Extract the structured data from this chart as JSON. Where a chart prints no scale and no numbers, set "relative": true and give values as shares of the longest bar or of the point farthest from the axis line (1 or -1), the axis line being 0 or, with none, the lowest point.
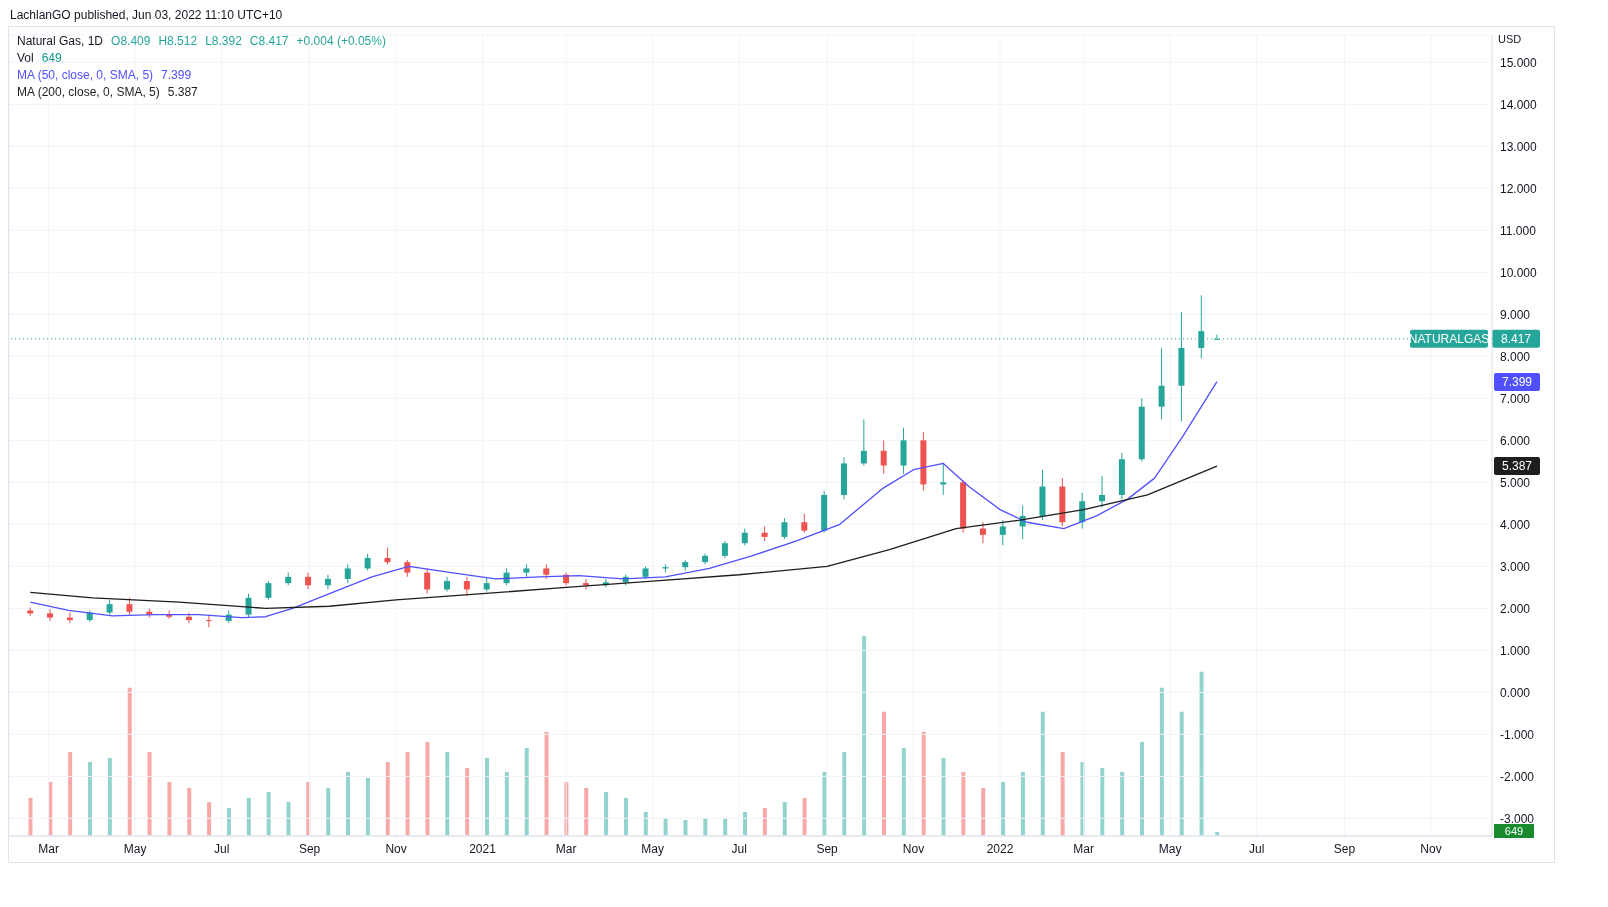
{
  "chart_data": [
    {
      "type": "candlestick",
      "title": "Natural Gas, 1D",
      "ylabel": "USD",
      "annotations": [
        "LachlanGO published, Jun 03, 2022 11:10 UTC+10",
        "O8.409",
        "H8.512",
        "L8.392",
        "C8.417",
        "+0.004 (+0.05%)",
        "8.417",
        "7.399",
        "5.387"
      ],
      "x": [
        "2020-02-17",
        "2020-03-02",
        "2020-03-16",
        "2020-03-30",
        "2020-04-13",
        "2020-04-27",
        "2020-05-11",
        "2020-05-25",
        "2020-06-08",
        "2020-06-22",
        "2020-07-06",
        "2020-07-20",
        "2020-08-03",
        "2020-08-17",
        "2020-08-31",
        "2020-09-14",
        "2020-09-28",
        "2020-10-12",
        "2020-10-26",
        "2020-11-09",
        "2020-11-23",
        "2020-12-07",
        "2020-12-21",
        "2021-01-04",
        "2021-01-18",
        "2021-02-01",
        "2021-02-15",
        "2021-03-01",
        "2021-03-15",
        "2021-03-29",
        "2021-04-12",
        "2021-04-26",
        "2021-05-10",
        "2021-05-24",
        "2021-06-07",
        "2021-06-21",
        "2021-07-05",
        "2021-07-19",
        "2021-08-02",
        "2021-08-16",
        "2021-08-30",
        "2021-09-13",
        "2021-09-27",
        "2021-10-11",
        "2021-10-25",
        "2021-11-08",
        "2021-11-22",
        "2021-12-06",
        "2021-12-20",
        "2022-01-03",
        "2022-01-17",
        "2022-01-31",
        "2022-02-14",
        "2022-02-28",
        "2022-03-14",
        "2022-03-28",
        "2022-04-11",
        "2022-04-25",
        "2022-05-09",
        "2022-05-23",
        "2022-06-03"
      ],
      "ohlc": [
        [
          1.95,
          2.02,
          1.82,
          1.88
        ],
        [
          1.88,
          1.98,
          1.7,
          1.78
        ],
        [
          1.78,
          1.9,
          1.65,
          1.72
        ],
        [
          1.72,
          1.95,
          1.68,
          1.9
        ],
        [
          1.9,
          2.2,
          1.85,
          2.1
        ],
        [
          2.1,
          2.25,
          1.85,
          1.92
        ],
        [
          1.92,
          2.0,
          1.78,
          1.85
        ],
        [
          1.85,
          1.95,
          1.75,
          1.8
        ],
        [
          1.8,
          1.9,
          1.65,
          1.72
        ],
        [
          1.72,
          1.85,
          1.55,
          1.7
        ],
        [
          1.7,
          1.95,
          1.65,
          1.85
        ],
        [
          1.85,
          2.35,
          1.78,
          2.25
        ],
        [
          2.25,
          2.65,
          2.2,
          2.6
        ],
        [
          2.6,
          2.85,
          2.55,
          2.75
        ],
        [
          2.75,
          2.85,
          2.45,
          2.55
        ],
        [
          2.55,
          2.8,
          2.45,
          2.7
        ],
        [
          2.7,
          3.05,
          2.6,
          2.95
        ],
        [
          2.95,
          3.3,
          2.9,
          3.2
        ],
        [
          3.2,
          3.45,
          3.05,
          3.1
        ],
        [
          3.1,
          3.15,
          2.75,
          2.85
        ],
        [
          2.85,
          2.95,
          2.35,
          2.45
        ],
        [
          2.45,
          2.75,
          2.4,
          2.65
        ],
        [
          2.65,
          2.75,
          2.3,
          2.45
        ],
        [
          2.45,
          2.75,
          2.4,
          2.6
        ],
        [
          2.6,
          2.95,
          2.55,
          2.85
        ],
        [
          2.85,
          3.05,
          2.75,
          2.95
        ],
        [
          2.95,
          3.05,
          2.7,
          2.8
        ],
        [
          2.8,
          2.85,
          2.55,
          2.6
        ],
        [
          2.6,
          2.7,
          2.45,
          2.55
        ],
        [
          2.55,
          2.7,
          2.5,
          2.62
        ],
        [
          2.62,
          2.8,
          2.55,
          2.75
        ],
        [
          2.75,
          3.0,
          2.7,
          2.95
        ],
        [
          2.95,
          3.05,
          2.85,
          2.98
        ],
        [
          2.98,
          3.15,
          2.9,
          3.1
        ],
        [
          3.1,
          3.3,
          3.05,
          3.25
        ],
        [
          3.25,
          3.6,
          3.2,
          3.55
        ],
        [
          3.55,
          3.9,
          3.5,
          3.8
        ],
        [
          3.8,
          3.95,
          3.6,
          3.7
        ],
        [
          3.7,
          4.15,
          3.65,
          4.05
        ],
        [
          4.05,
          4.25,
          3.8,
          3.85
        ],
        [
          3.85,
          4.8,
          3.8,
          4.7
        ],
        [
          4.7,
          5.6,
          4.6,
          5.45
        ],
        [
          5.45,
          6.5,
          5.4,
          5.75
        ],
        [
          5.75,
          6.0,
          5.2,
          5.4
        ],
        [
          5.4,
          6.3,
          5.2,
          6.0
        ],
        [
          6.0,
          6.2,
          4.8,
          4.95
        ],
        [
          4.95,
          5.45,
          4.7,
          5.0
        ],
        [
          5.0,
          5.05,
          3.8,
          3.9
        ],
        [
          3.9,
          4.05,
          3.55,
          3.75
        ],
        [
          3.75,
          4.1,
          3.5,
          3.95
        ],
        [
          3.95,
          4.45,
          3.65,
          4.2
        ],
        [
          4.2,
          5.3,
          4.1,
          4.9
        ],
        [
          4.9,
          5.1,
          3.95,
          4.05
        ],
        [
          4.05,
          4.75,
          3.9,
          4.55
        ],
        [
          4.55,
          5.15,
          4.4,
          4.7
        ],
        [
          4.7,
          5.7,
          4.6,
          5.55
        ],
        [
          5.55,
          7.0,
          5.5,
          6.8
        ],
        [
          6.8,
          8.2,
          6.5,
          7.3
        ],
        [
          7.3,
          9.05,
          6.45,
          8.2
        ],
        [
          8.2,
          9.45,
          7.95,
          8.6
        ],
        [
          8.409,
          8.512,
          8.392,
          8.417
        ]
      ],
      "colors": [
        "#ef5350",
        "#ef5350",
        "#ef5350",
        "#26a69a",
        "#26a69a",
        "#ef5350",
        "#ef5350",
        "#ef5350",
        "#ef5350",
        "#ef5350",
        "#26a69a",
        "#26a69a",
        "#26a69a",
        "#26a69a",
        "#ef5350",
        "#26a69a",
        "#26a69a",
        "#26a69a",
        "#ef5350",
        "#ef5350",
        "#ef5350",
        "#26a69a",
        "#ef5350",
        "#26a69a",
        "#26a69a",
        "#26a69a",
        "#ef5350",
        "#ef5350",
        "#ef5350",
        "#26a69a",
        "#26a69a",
        "#26a69a",
        "#26a69a",
        "#26a69a",
        "#26a69a",
        "#26a69a",
        "#26a69a",
        "#ef5350",
        "#26a69a",
        "#ef5350",
        "#26a69a",
        "#26a69a",
        "#26a69a",
        "#ef5350",
        "#26a69a",
        "#ef5350",
        "#26a69a",
        "#ef5350",
        "#ef5350",
        "#26a69a",
        "#26a69a",
        "#26a69a",
        "#ef5350",
        "#26a69a",
        "#26a69a",
        "#26a69a",
        "#26a69a",
        "#26a69a",
        "#26a69a",
        "#26a69a",
        "#26a69a"
      ],
      "series": [
        {
          "type": "line",
          "name": "MA (50, close, 0, SMA, 5)",
          "color": "#5050ff",
          "x": [
            "2020-02-17",
            "2020-03-15",
            "2020-04-15",
            "2020-05-15",
            "2020-06-15",
            "2020-07-15",
            "2020-08-01",
            "2020-08-20",
            "2020-09-15",
            "2020-10-15",
            "2020-11-10",
            "2020-12-10",
            "2021-01-10",
            "2021-02-10",
            "2021-03-10",
            "2021-04-10",
            "2021-05-10",
            "2021-06-10",
            "2021-07-10",
            "2021-08-10",
            "2021-09-10",
            "2021-10-10",
            "2021-11-01",
            "2021-11-22",
            "2021-12-10",
            "2022-01-01",
            "2022-01-20",
            "2022-02-15",
            "2022-03-10",
            "2022-04-01",
            "2022-04-20",
            "2022-05-10",
            "2022-06-03"
          ],
          "values": [
            2.15,
            1.95,
            1.82,
            1.85,
            1.85,
            1.78,
            1.8,
            2.0,
            2.35,
            2.75,
            3.0,
            2.85,
            2.7,
            2.75,
            2.78,
            2.7,
            2.75,
            2.95,
            3.25,
            3.6,
            4.0,
            4.85,
            5.3,
            5.45,
            4.9,
            4.35,
            4.05,
            3.9,
            4.2,
            4.6,
            5.1,
            6.1,
            7.399
          ]
        },
        {
          "type": "line",
          "name": "MA (200, close, 0, SMA, 5)",
          "color": "#1e1e1e",
          "x": [
            "2020-02-17",
            "2020-04-01",
            "2020-06-01",
            "2020-08-01",
            "2020-09-15",
            "2020-11-01",
            "2021-01-01",
            "2021-03-01",
            "2021-05-01",
            "2021-07-01",
            "2021-09-01",
            "2021-10-15",
            "2021-12-01",
            "2022-01-15",
            "2022-03-01",
            "2022-04-15",
            "2022-06-03"
          ],
          "values": [
            2.38,
            2.25,
            2.15,
            2.0,
            2.05,
            2.2,
            2.35,
            2.5,
            2.65,
            2.8,
            3.0,
            3.4,
            3.9,
            4.1,
            4.35,
            4.7,
            5.387
          ]
        }
      ],
      "ref_lines": [
        {
          "axis": "y",
          "value": 8.417,
          "label": "NATURALGAS",
          "color": "#26a69a",
          "line_style": "dotted"
        }
      ],
      "xlim": [
        "2020-02-02",
        "2022-12-14"
      ],
      "xticks": [
        {
          "value": "2020-03-01",
          "label": "Mar"
        },
        {
          "value": "2020-05-01",
          "label": "May"
        },
        {
          "value": "2020-07-01",
          "label": "Jul"
        },
        {
          "value": "2020-09-01",
          "label": "Sep"
        },
        {
          "value": "2020-11-01",
          "label": "Nov"
        },
        {
          "value": "2021-01-01",
          "label": "2021"
        },
        {
          "value": "2021-03-01",
          "label": "Mar"
        },
        {
          "value": "2021-05-01",
          "label": "May"
        },
        {
          "value": "2021-07-01",
          "label": "Jul"
        },
        {
          "value": "2021-09-01",
          "label": "Sep"
        },
        {
          "value": "2021-11-01",
          "label": "Nov"
        },
        {
          "value": "2022-01-01",
          "label": "2022"
        },
        {
          "value": "2022-03-01",
          "label": "Mar"
        },
        {
          "value": "2022-05-01",
          "label": "May"
        },
        {
          "value": "2022-07-01",
          "label": "Jul"
        },
        {
          "value": "2022-09-01",
          "label": "Sep"
        },
        {
          "value": "2022-11-01",
          "label": "Nov"
        }
      ],
      "ylim": [
        -3.42,
        15.65
      ],
      "yticks": [
        {
          "value": -3,
          "label": "-3.000"
        },
        {
          "value": -2,
          "label": "-2.000"
        },
        {
          "value": -1,
          "label": "-1.000"
        },
        {
          "value": 0,
          "label": "0.000"
        },
        {
          "value": 1,
          "label": "1.000"
        },
        {
          "value": 2,
          "label": "2.000"
        },
        {
          "value": 3,
          "label": "3.000"
        },
        {
          "value": 4,
          "label": "4.000"
        },
        {
          "value": 5,
          "label": "5.000"
        },
        {
          "value": 6,
          "label": "6.000"
        },
        {
          "value": 7,
          "label": "7.000"
        },
        {
          "value": 8,
          "label": "8.000"
        },
        {
          "value": 9,
          "label": "9.000"
        },
        {
          "value": 10,
          "label": "10.000"
        },
        {
          "value": 11,
          "label": "11.000"
        },
        {
          "value": 12,
          "label": "12.000"
        },
        {
          "value": 13,
          "label": "13.000"
        },
        {
          "value": 14,
          "label": "14.000"
        },
        {
          "value": 15,
          "label": "15.000"
        }
      ],
      "grid": true,
      "legend": "top left"
    },
    {
      "type": "bar",
      "relative": true,
      "title": "Vol",
      "annotations": [
        "649"
      ],
      "tick_labels": false,
      "x": [
        "2020-02-17",
        "2020-03-02",
        "2020-03-16",
        "2020-03-30",
        "2020-04-13",
        "2020-04-27",
        "2020-05-11",
        "2020-05-25",
        "2020-06-08",
        "2020-06-22",
        "2020-07-06",
        "2020-07-20",
        "2020-08-03",
        "2020-08-17",
        "2020-08-31",
        "2020-09-14",
        "2020-09-28",
        "2020-10-12",
        "2020-10-26",
        "2020-11-09",
        "2020-11-23",
        "2020-12-07",
        "2020-12-21",
        "2021-01-04",
        "2021-01-18",
        "2021-02-01",
        "2021-02-15",
        "2021-03-01",
        "2021-03-15",
        "2021-03-29",
        "2021-04-12",
        "2021-04-26",
        "2021-05-10",
        "2021-05-24",
        "2021-06-07",
        "2021-06-21",
        "2021-07-05",
        "2021-07-19",
        "2021-08-02",
        "2021-08-16",
        "2021-08-30",
        "2021-09-13",
        "2021-09-27",
        "2021-10-11",
        "2021-10-25",
        "2021-11-08",
        "2021-11-22",
        "2021-12-06",
        "2021-12-20",
        "2022-01-03",
        "2022-01-17",
        "2022-01-31",
        "2022-02-14",
        "2022-02-28",
        "2022-03-14",
        "2022-03-28",
        "2022-04-11",
        "2022-04-25",
        "2022-05-09",
        "2022-05-23",
        "2022-06-03"
      ],
      "values": [
        0.19,
        0.27,
        0.42,
        0.37,
        0.39,
        0.74,
        0.42,
        0.27,
        0.24,
        0.17,
        0.14,
        0.19,
        0.22,
        0.17,
        0.27,
        0.24,
        0.32,
        0.29,
        0.37,
        0.42,
        0.47,
        0.42,
        0.34,
        0.39,
        0.32,
        0.44,
        0.52,
        0.27,
        0.24,
        0.22,
        0.19,
        0.12,
        0.09,
        0.08,
        0.09,
        0.09,
        0.12,
        0.14,
        0.17,
        0.19,
        0.32,
        0.42,
        1,
        0.62,
        0.44,
        0.52,
        0.39,
        0.32,
        0.24,
        0.27,
        0.32,
        0.62,
        0.42,
        0.37,
        0.34,
        0.32,
        0.47,
        0.74,
        0.62,
        0.82,
        0.02
      ],
      "colors": [
        "#f7a9a8",
        "#f7a9a8",
        "#f7a9a8",
        "#93d3cd",
        "#93d3cd",
        "#f7a9a8",
        "#f7a9a8",
        "#f7a9a8",
        "#f7a9a8",
        "#f7a9a8",
        "#93d3cd",
        "#93d3cd",
        "#93d3cd",
        "#93d3cd",
        "#f7a9a8",
        "#93d3cd",
        "#93d3cd",
        "#93d3cd",
        "#f7a9a8",
        "#f7a9a8",
        "#f7a9a8",
        "#93d3cd",
        "#f7a9a8",
        "#93d3cd",
        "#93d3cd",
        "#93d3cd",
        "#f7a9a8",
        "#f7a9a8",
        "#f7a9a8",
        "#93d3cd",
        "#93d3cd",
        "#93d3cd",
        "#93d3cd",
        "#93d3cd",
        "#93d3cd",
        "#93d3cd",
        "#93d3cd",
        "#f7a9a8",
        "#93d3cd",
        "#f7a9a8",
        "#93d3cd",
        "#93d3cd",
        "#93d3cd",
        "#f7a9a8",
        "#93d3cd",
        "#f7a9a8",
        "#93d3cd",
        "#f7a9a8",
        "#f7a9a8",
        "#93d3cd",
        "#93d3cd",
        "#93d3cd",
        "#f7a9a8",
        "#93d3cd",
        "#93d3cd",
        "#93d3cd",
        "#93d3cd",
        "#93d3cd",
        "#93d3cd",
        "#93d3cd",
        "#93d3cd"
      ],
      "xlim": [
        "2020-02-02",
        "2022-12-14"
      ]
    }
  ]
}
